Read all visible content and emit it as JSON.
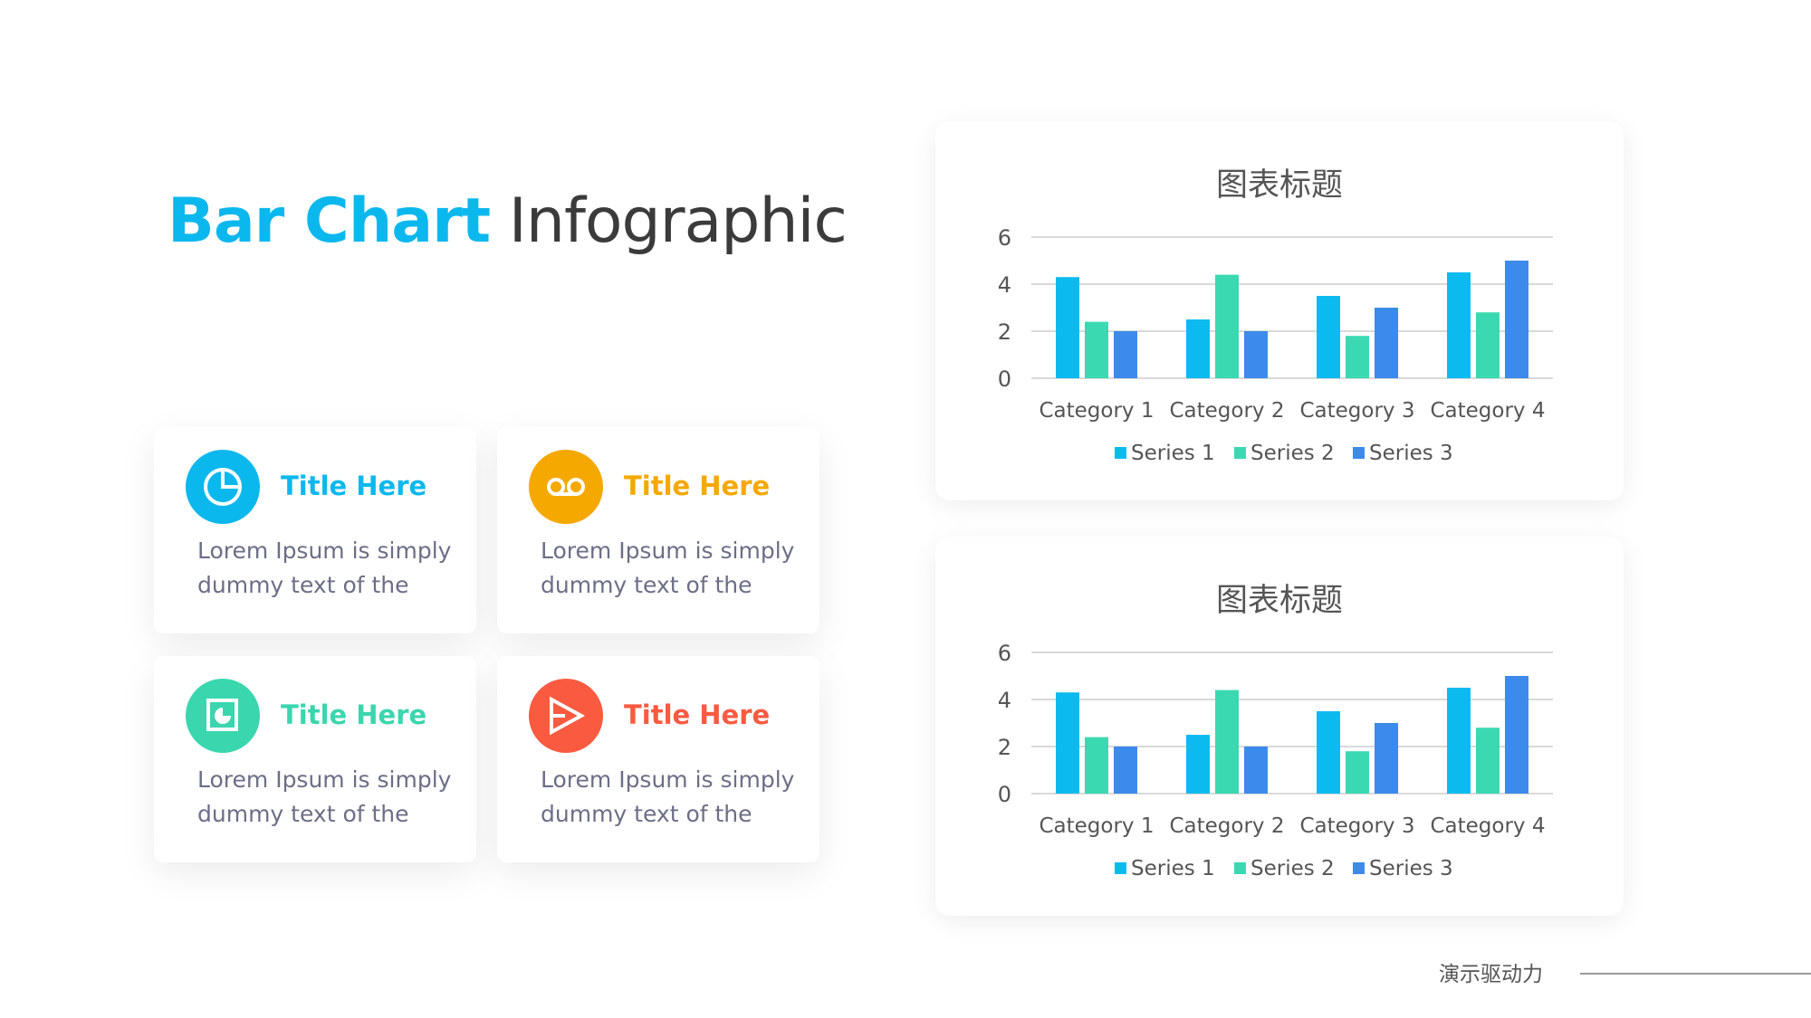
{
  "title": {
    "accent": "Bar Chart",
    "rest": "Infographic",
    "accent_color": "#0BB8EE"
  },
  "cards": [
    {
      "title": "Title Here",
      "body": "Lorem Ipsum is simply dummy text of the",
      "icon": "pie-chart-icon",
      "color": "#0BB8EE"
    },
    {
      "title": "Title Here",
      "body": "Lorem Ipsum is simply dummy text of the",
      "icon": "voicemail-icon",
      "color": "#F5A800"
    },
    {
      "title": "Title Here",
      "body": "Lorem Ipsum is simply dummy text of the",
      "icon": "presentation-chart-icon",
      "color": "#3AD6AE"
    },
    {
      "title": "Title Here",
      "body": "Lorem Ipsum is simply dummy text of the",
      "icon": "play-triangle-icon",
      "color": "#FA5A40"
    }
  ],
  "chart_data": [
    {
      "type": "bar",
      "title": "图表标题",
      "categories": [
        "Category 1",
        "Category 2",
        "Category 3",
        "Category 4"
      ],
      "series": [
        {
          "name": "Series 1",
          "values": [
            4.3,
            2.5,
            3.5,
            4.5
          ],
          "color": "#0BBBEF"
        },
        {
          "name": "Series 2",
          "values": [
            2.4,
            4.4,
            1.8,
            2.8
          ],
          "color": "#3AD9B2"
        },
        {
          "name": "Series 3",
          "values": [
            2,
            2,
            3,
            5
          ],
          "color": "#3C8AEB"
        }
      ],
      "ylim": [
        0,
        6
      ],
      "yticks": [
        "0",
        "2",
        "4",
        "6"
      ],
      "grid": true,
      "legend": "bottom"
    },
    {
      "type": "bar",
      "title": "图表标题",
      "categories": [
        "Category 1",
        "Category 2",
        "Category 3",
        "Category 4"
      ],
      "series": [
        {
          "name": "Series 1",
          "values": [
            4.3,
            2.5,
            3.5,
            4.5
          ],
          "color": "#0BBBEF"
        },
        {
          "name": "Series 2",
          "values": [
            2.4,
            4.4,
            1.8,
            2.8
          ],
          "color": "#3AD9B2"
        },
        {
          "name": "Series 3",
          "values": [
            2,
            2,
            3,
            5
          ],
          "color": "#3C8AEB"
        }
      ],
      "ylim": [
        0,
        6
      ],
      "yticks": [
        "0",
        "2",
        "4",
        "6"
      ],
      "grid": true,
      "legend": "bottom"
    }
  ],
  "footer": {
    "text": "演示驱动力"
  }
}
